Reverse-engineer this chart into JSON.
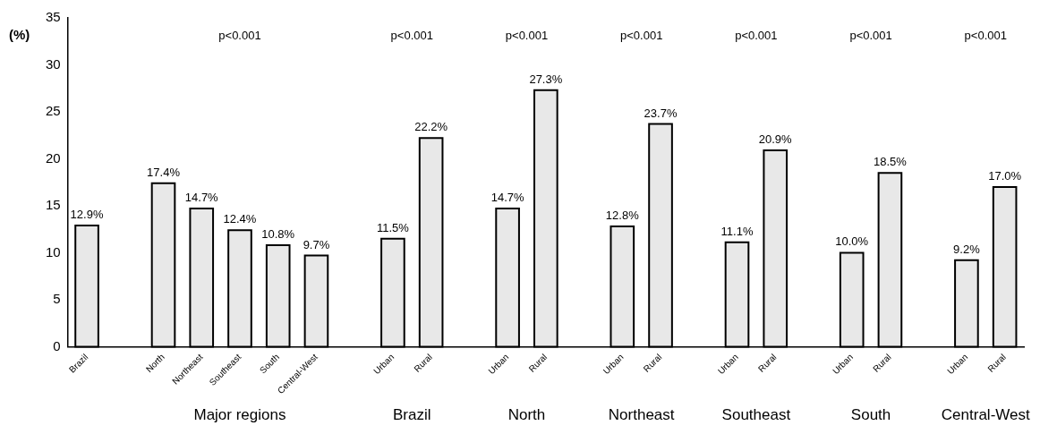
{
  "chart_data": {
    "type": "bar",
    "ylabel": "(%)",
    "categories": [
      "Brazil",
      null,
      "North",
      "Northeast",
      "Southeast",
      "South",
      "Central-West",
      null,
      "Urban",
      "Rural",
      null,
      "Urban",
      "Rural",
      null,
      "Urban",
      "Rural",
      null,
      "Urban",
      "Rural",
      null,
      "Urban",
      "Rural",
      null,
      "Urban",
      "Rural"
    ],
    "values": [
      12.9,
      null,
      17.4,
      14.7,
      12.4,
      10.8,
      9.7,
      null,
      11.5,
      22.2,
      null,
      14.7,
      27.3,
      null,
      12.8,
      23.7,
      null,
      11.1,
      20.9,
      null,
      10.0,
      18.5,
      null,
      9.2,
      17.0
    ],
    "value_labels": [
      "12.9%",
      null,
      "17.4%",
      "14.7%",
      "12.4%",
      "10.8%",
      "9.7%",
      null,
      "11.5%",
      "22.2%",
      null,
      "14.7%",
      "27.3%",
      null,
      "12.8%",
      "23.7%",
      null,
      "11.1%",
      "20.9%",
      null,
      "10.0%",
      "18.5%",
      null,
      "9.2%",
      "17.0%"
    ],
    "color": "#e8e8e8",
    "ylim": [
      0,
      35
    ],
    "yticks": [
      0,
      5,
      10,
      15,
      20,
      25,
      30,
      35
    ],
    "grid": false,
    "legend": false,
    "annotations": [
      "p<0.001",
      "p<0.001",
      "p<0.001",
      "p<0.001",
      "p<0.001",
      "p<0.001",
      "p<0.001",
      "Major regions",
      "Brazil",
      "North",
      "Northeast",
      "Southeast",
      "South",
      "Central-West"
    ]
  }
}
